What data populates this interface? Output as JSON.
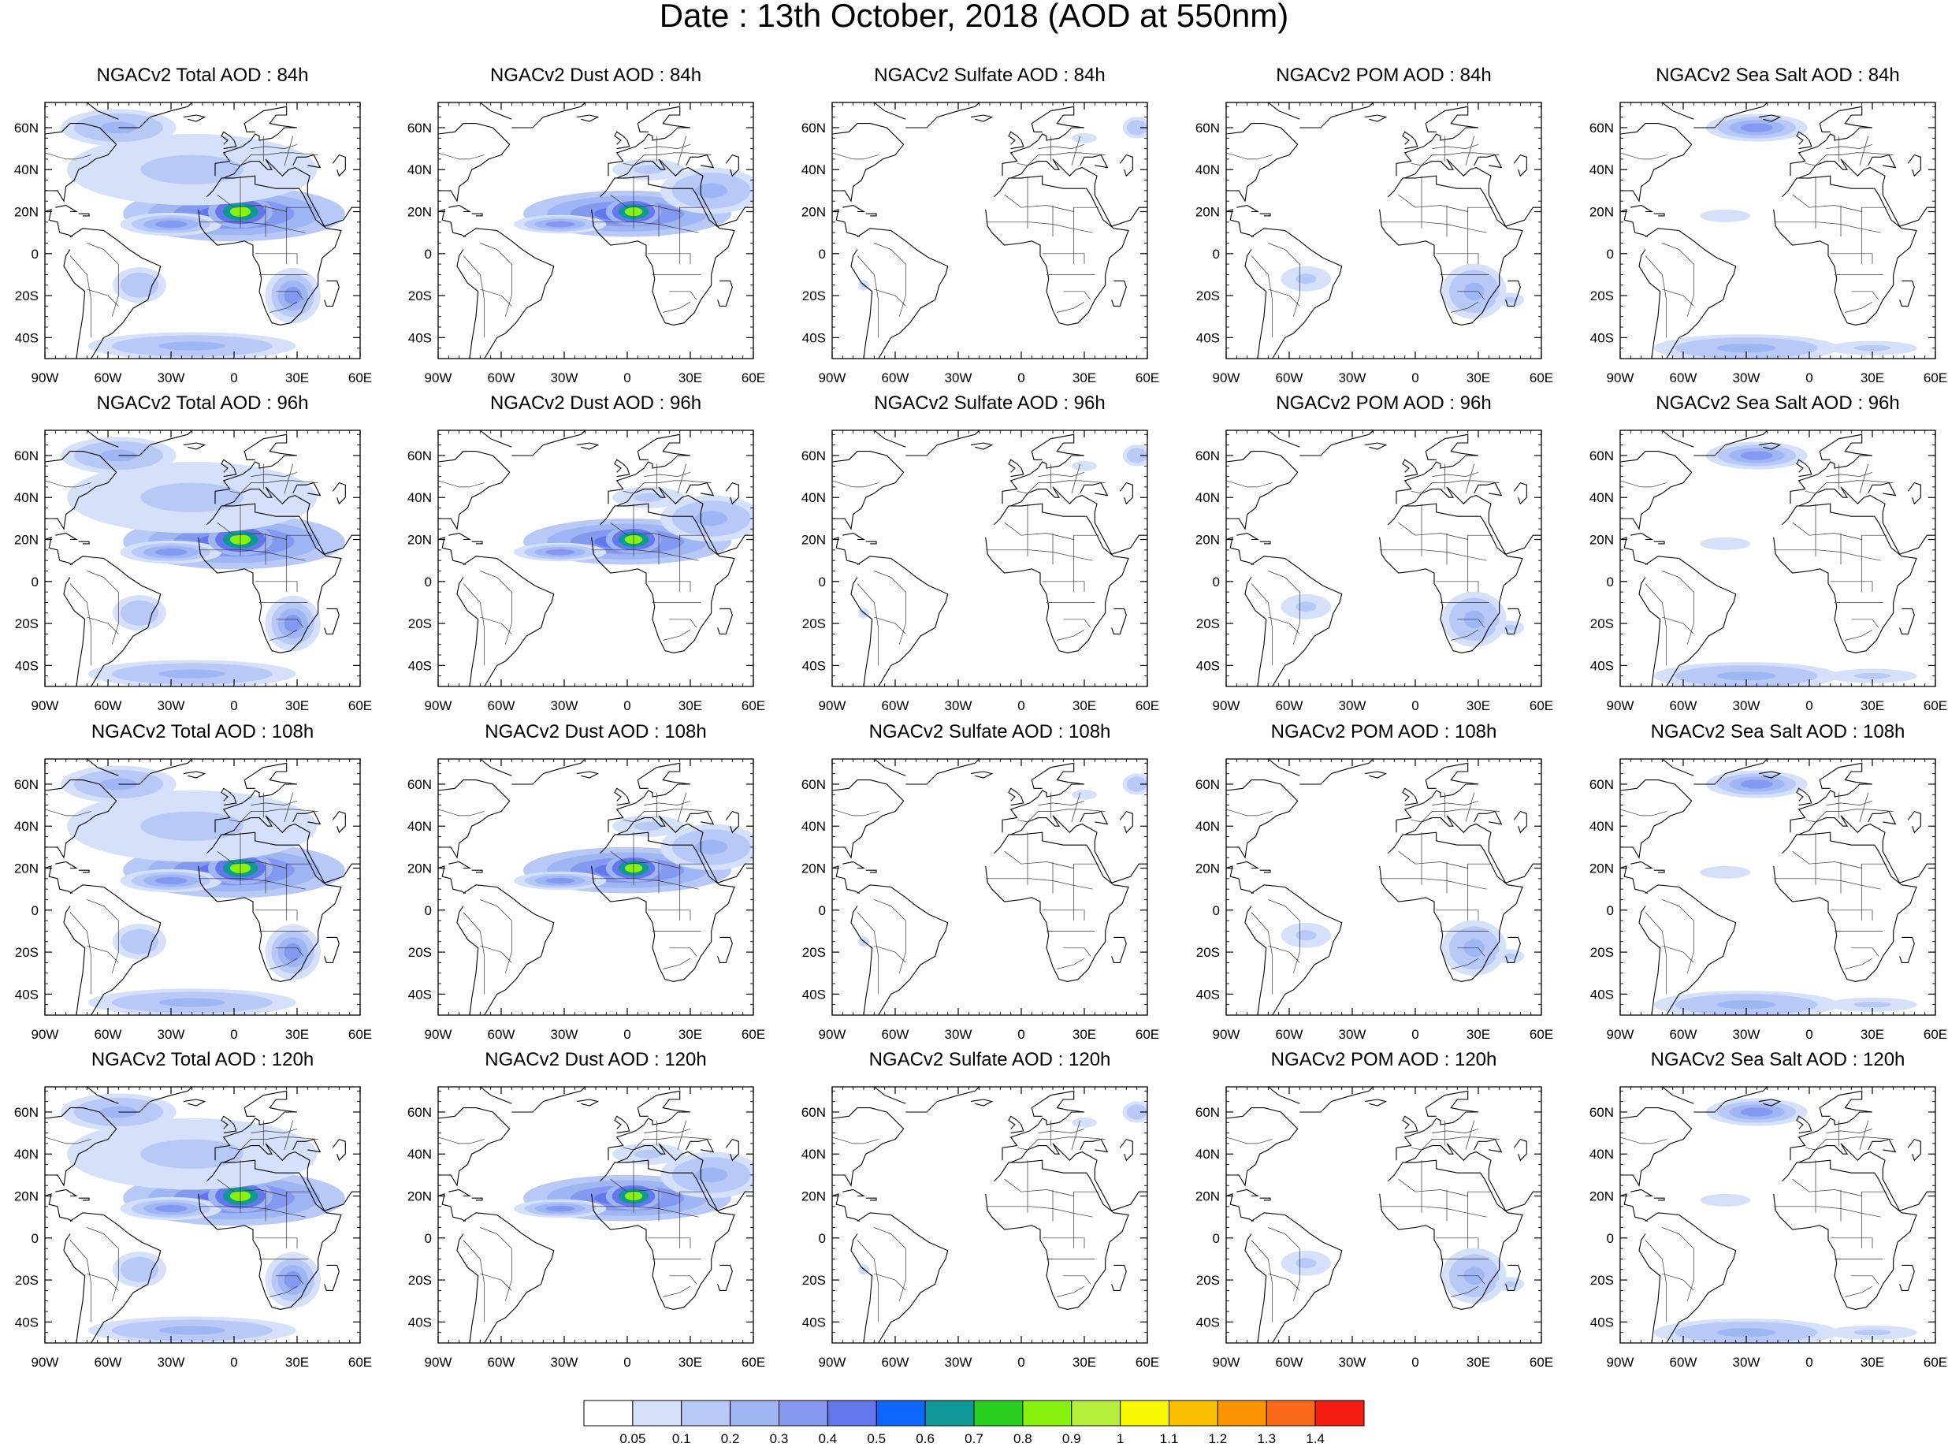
{
  "title": "Date : 13th October, 2018 (AOD at 550nm)",
  "panel_rows": [
    {
      "hour": "84h",
      "panels": [
        {
          "title": "NGACv2 Total AOD : 84h",
          "field": "total"
        },
        {
          "title": "NGACv2 Dust AOD : 84h",
          "field": "dust"
        },
        {
          "title": "NGACv2 Sulfate AOD : 84h",
          "field": "sulfate"
        },
        {
          "title": "NGACv2 POM AOD : 84h",
          "field": "pom"
        },
        {
          "title": "NGACv2 Sea Salt AOD : 84h",
          "field": "seasalt"
        }
      ]
    },
    {
      "hour": "96h",
      "panels": [
        {
          "title": "NGACv2 Total AOD : 96h",
          "field": "total"
        },
        {
          "title": "NGACv2 Dust AOD : 96h",
          "field": "dust"
        },
        {
          "title": "NGACv2 Sulfate AOD : 96h",
          "field": "sulfate"
        },
        {
          "title": "NGACv2 POM AOD : 96h",
          "field": "pom"
        },
        {
          "title": "NGACv2 Sea Salt AOD : 96h",
          "field": "seasalt"
        }
      ]
    },
    {
      "hour": "108h",
      "panels": [
        {
          "title": "NGACv2 Total AOD : 108h",
          "field": "total"
        },
        {
          "title": "NGACv2 Dust AOD : 108h",
          "field": "dust"
        },
        {
          "title": "NGACv2 Sulfate AOD : 108h",
          "field": "sulfate"
        },
        {
          "title": "NGACv2 POM AOD : 108h",
          "field": "pom"
        },
        {
          "title": "NGACv2 Sea Salt AOD : 108h",
          "field": "seasalt"
        }
      ]
    },
    {
      "hour": "120h",
      "panels": [
        {
          "title": "NGACv2 Total AOD : 120h",
          "field": "total"
        },
        {
          "title": "NGACv2 Dust AOD : 120h",
          "field": "dust"
        },
        {
          "title": "NGACv2 Sulfate AOD : 120h",
          "field": "sulfate"
        },
        {
          "title": "NGACv2 POM AOD : 120h",
          "field": "pom"
        },
        {
          "title": "NGACv2 Sea Salt  AOD : 120h",
          "field": "seasalt"
        }
      ]
    }
  ],
  "map_extent": {
    "lon": [
      -90,
      60
    ],
    "lat": [
      -50,
      72
    ]
  },
  "lon_ticks": [
    {
      "value": -90,
      "label": "90W"
    },
    {
      "value": -60,
      "label": "60W"
    },
    {
      "value": -30,
      "label": "30W"
    },
    {
      "value": 0,
      "label": "0"
    },
    {
      "value": 30,
      "label": "30E"
    },
    {
      "value": 60,
      "label": "60E"
    }
  ],
  "lat_ticks": [
    {
      "value": 60,
      "label": "60N"
    },
    {
      "value": 40,
      "label": "40N"
    },
    {
      "value": 20,
      "label": "20N"
    },
    {
      "value": 0,
      "label": "0"
    },
    {
      "value": -20,
      "label": "20S"
    },
    {
      "value": -40,
      "label": "40S"
    }
  ],
  "colorbar": {
    "levels": [
      "0.05",
      "0.1",
      "0.2",
      "0.3",
      "0.4",
      "0.5",
      "0.6",
      "0.7",
      "0.8",
      "0.9",
      "1",
      "1.1",
      "1.2",
      "1.3",
      "1.4"
    ],
    "colors": [
      "#ffffff",
      "#d5e0fb",
      "#b8c9f7",
      "#9fb5f4",
      "#8599f0",
      "#6577ec",
      "#0f66ff",
      "#109797",
      "#2ad01d",
      "#86f20e",
      "#b6ee3c",
      "#f8f800",
      "#fbbf00",
      "#fd9400",
      "#fb6a1a",
      "#f51d11"
    ]
  },
  "aerosol_fields": {
    "total": [
      {
        "lon": 0,
        "lat": 19,
        "rx": 48,
        "ry": 12,
        "v": 0.45
      },
      {
        "lon": -30,
        "lat": 14,
        "rx": 22,
        "ry": 5,
        "v": 0.3
      },
      {
        "lon": 3,
        "lat": 20,
        "rx": 14,
        "ry": 7,
        "v": 0.8
      },
      {
        "lon": -20,
        "lat": 40,
        "rx": 70,
        "ry": 20,
        "v": 0.12
      },
      {
        "lon": -55,
        "lat": 60,
        "rx": 25,
        "ry": 8,
        "v": 0.25
      },
      {
        "lon": 28,
        "lat": -20,
        "rx": 12,
        "ry": 12,
        "v": 0.3
      },
      {
        "lon": -20,
        "lat": -44,
        "rx": 45,
        "ry": 6,
        "v": 0.25
      },
      {
        "lon": -45,
        "lat": -15,
        "rx": 15,
        "ry": 10,
        "v": 0.15
      }
    ],
    "dust": [
      {
        "lon": 0,
        "lat": 19,
        "rx": 45,
        "ry": 10,
        "v": 0.45
      },
      {
        "lon": -32,
        "lat": 14,
        "rx": 20,
        "ry": 4,
        "v": 0.3
      },
      {
        "lon": 3,
        "lat": 20,
        "rx": 12,
        "ry": 6,
        "v": 0.8
      },
      {
        "lon": 40,
        "lat": 30,
        "rx": 22,
        "ry": 10,
        "v": 0.2
      },
      {
        "lon": 10,
        "lat": 40,
        "rx": 20,
        "ry": 6,
        "v": 0.1
      }
    ],
    "sulfate": [
      {
        "lon": 55,
        "lat": 60,
        "rx": 8,
        "ry": 6,
        "v": 0.15
      },
      {
        "lon": 30,
        "lat": 55,
        "rx": 10,
        "ry": 4,
        "v": 0.08
      },
      {
        "lon": -75,
        "lat": -15,
        "rx": 3,
        "ry": 3,
        "v": 0.1
      }
    ],
    "pom": [
      {
        "lon": 28,
        "lat": -18,
        "rx": 14,
        "ry": 12,
        "v": 0.25
      },
      {
        "lon": -52,
        "lat": -12,
        "rx": 14,
        "ry": 7,
        "v": 0.12
      },
      {
        "lon": 45,
        "lat": -22,
        "rx": 8,
        "ry": 4,
        "v": 0.1
      }
    ],
    "seasalt": [
      {
        "lon": -25,
        "lat": 60,
        "rx": 22,
        "ry": 6,
        "v": 0.3
      },
      {
        "lon": -30,
        "lat": -45,
        "rx": 40,
        "ry": 6,
        "v": 0.2
      },
      {
        "lon": 30,
        "lat": -45,
        "rx": 25,
        "ry": 4,
        "v": 0.12
      },
      {
        "lon": -40,
        "lat": 18,
        "rx": 20,
        "ry": 5,
        "v": 0.08
      }
    ]
  },
  "coastlines": {
    "north_america": [
      [
        -90,
        30
      ],
      [
        -84,
        30
      ],
      [
        -81,
        25
      ],
      [
        -80,
        32
      ],
      [
        -76,
        35
      ],
      [
        -74,
        40
      ],
      [
        -70,
        42
      ],
      [
        -66,
        45
      ],
      [
        -60,
        47
      ],
      [
        -56,
        52
      ],
      [
        -60,
        56
      ],
      [
        -64,
        60
      ],
      [
        -72,
        62
      ],
      [
        -78,
        62
      ],
      [
        -82,
        58
      ],
      [
        -90,
        57
      ]
    ],
    "greenland": [
      [
        -55,
        60
      ],
      [
        -45,
        60
      ],
      [
        -40,
        65
      ],
      [
        -30,
        68
      ],
      [
        -22,
        70
      ],
      [
        -20,
        72
      ],
      [
        -70,
        72
      ],
      [
        -65,
        68
      ],
      [
        -55,
        64
      ]
    ],
    "central_america": [
      [
        -90,
        20
      ],
      [
        -87,
        21
      ],
      [
        -88,
        16
      ],
      [
        -84,
        15
      ],
      [
        -83,
        10
      ],
      [
        -79,
        9
      ],
      [
        -77,
        8
      ]
    ],
    "south_america": [
      [
        -78,
        8
      ],
      [
        -72,
        12
      ],
      [
        -62,
        11
      ],
      [
        -55,
        6
      ],
      [
        -50,
        2
      ],
      [
        -44,
        -2
      ],
      [
        -35,
        -6
      ],
      [
        -36,
        -10
      ],
      [
        -39,
        -15
      ],
      [
        -41,
        -22
      ],
      [
        -48,
        -26
      ],
      [
        -53,
        -33
      ],
      [
        -58,
        -38
      ],
      [
        -62,
        -40
      ],
      [
        -65,
        -45
      ],
      [
        -68,
        -50
      ],
      [
        -75,
        -50
      ],
      [
        -74,
        -42
      ],
      [
        -72,
        -30
      ],
      [
        -71,
        -18
      ],
      [
        -76,
        -14
      ],
      [
        -81,
        -6
      ],
      [
        -80,
        -1
      ],
      [
        -78,
        2
      ]
    ],
    "africa": [
      [
        -17,
        21
      ],
      [
        -16,
        13
      ],
      [
        -14,
        10
      ],
      [
        -8,
        4
      ],
      [
        0,
        5
      ],
      [
        5,
        6
      ],
      [
        9,
        4
      ],
      [
        9,
        -1
      ],
      [
        12,
        -6
      ],
      [
        13,
        -12
      ],
      [
        12,
        -18
      ],
      [
        15,
        -27
      ],
      [
        18,
        -33
      ],
      [
        22,
        -34
      ],
      [
        27,
        -33
      ],
      [
        32,
        -28
      ],
      [
        35,
        -22
      ],
      [
        40,
        -15
      ],
      [
        40,
        -10
      ],
      [
        42,
        -2
      ],
      [
        48,
        3
      ],
      [
        51,
        11
      ],
      [
        44,
        12
      ],
      [
        39,
        16
      ],
      [
        33,
        28
      ],
      [
        31,
        31
      ],
      [
        20,
        31
      ],
      [
        10,
        33
      ],
      [
        10,
        37
      ],
      [
        0,
        36
      ],
      [
        -6,
        36
      ],
      [
        -10,
        30
      ],
      [
        -13,
        27
      ]
    ],
    "madagascar": [
      [
        44,
        -13
      ],
      [
        49,
        -13
      ],
      [
        50,
        -16
      ],
      [
        47,
        -25
      ],
      [
        44,
        -25
      ],
      [
        43,
        -22
      ]
    ],
    "europe": [
      [
        -9,
        37
      ],
      [
        -9,
        43
      ],
      [
        -2,
        44
      ],
      [
        -5,
        48
      ],
      [
        1,
        50
      ],
      [
        4,
        51
      ],
      [
        8,
        54
      ],
      [
        10,
        57
      ],
      [
        12,
        56
      ],
      [
        12,
        54
      ],
      [
        18,
        55
      ],
      [
        21,
        57
      ],
      [
        24,
        60
      ],
      [
        30,
        60
      ],
      [
        22,
        61
      ],
      [
        17,
        62
      ],
      [
        20,
        66
      ],
      [
        25,
        66
      ],
      [
        25,
        70
      ],
      [
        14,
        68
      ],
      [
        5,
        62
      ],
      [
        6,
        58
      ],
      [
        10,
        58
      ]
    ],
    "mediterranean": [
      [
        -5,
        36
      ],
      [
        0,
        38
      ],
      [
        3,
        42
      ],
      [
        8,
        44
      ],
      [
        12,
        44
      ],
      [
        16,
        40
      ],
      [
        18,
        40
      ],
      [
        15,
        45
      ],
      [
        20,
        40
      ],
      [
        23,
        37
      ],
      [
        26,
        40
      ],
      [
        29,
        41
      ],
      [
        36,
        37
      ],
      [
        35,
        33
      ]
    ],
    "arabia": [
      [
        35,
        33
      ],
      [
        35,
        28
      ],
      [
        43,
        13
      ],
      [
        52,
        16
      ],
      [
        56,
        22
      ],
      [
        60,
        22
      ]
    ],
    "britain": [
      [
        -5,
        50
      ],
      [
        1,
        51
      ],
      [
        0,
        54
      ],
      [
        -2,
        56
      ],
      [
        -5,
        58
      ],
      [
        -6,
        56
      ],
      [
        -3,
        54
      ],
      [
        -5,
        52
      ]
    ],
    "iceland": [
      [
        -24,
        65
      ],
      [
        -18,
        66
      ],
      [
        -14,
        65
      ],
      [
        -18,
        63
      ],
      [
        -22,
        64
      ]
    ],
    "black_sea": [
      [
        28,
        42
      ],
      [
        30,
        46
      ],
      [
        34,
        46
      ],
      [
        38,
        47
      ],
      [
        41,
        41
      ],
      [
        35,
        42
      ]
    ],
    "caspian": [
      [
        47,
        43
      ],
      [
        50,
        47
      ],
      [
        53,
        46
      ],
      [
        53,
        40
      ],
      [
        50,
        37
      ],
      [
        49,
        40
      ]
    ],
    "cuba": [
      [
        -85,
        22
      ],
      [
        -80,
        23
      ],
      [
        -75,
        20
      ],
      [
        -78,
        20
      ]
    ],
    "hispaniola": [
      [
        -74,
        19
      ],
      [
        -69,
        19
      ],
      [
        -69,
        18
      ],
      [
        -72,
        18
      ]
    ]
  },
  "borders": {
    "africa": [
      [
        [
          -8,
          28
        ],
        [
          0,
          22
        ],
        [
          12,
          23
        ],
        [
          25,
          20
        ],
        [
          25,
          22
        ],
        [
          37,
          22
        ]
      ],
      [
        [
          -17,
          15
        ],
        [
          -5,
          15
        ],
        [
          4,
          15
        ],
        [
          15,
          14
        ],
        [
          24,
          12
        ],
        [
          34,
          10
        ]
      ],
      [
        [
          10,
          0
        ],
        [
          30,
          0
        ],
        [
          30,
          -5
        ]
      ],
      [
        [
          12,
          -10
        ],
        [
          25,
          -10
        ],
        [
          35,
          -10
        ]
      ],
      [
        [
          20,
          -18
        ],
        [
          30,
          -18
        ],
        [
          33,
          -22
        ]
      ],
      [
        [
          3,
          12
        ],
        [
          3,
          37
        ]
      ],
      [
        [
          15,
          23
        ],
        [
          15,
          8
        ]
      ],
      [
        [
          25,
          -5
        ],
        [
          25,
          22
        ]
      ],
      [
        [
          17,
          -28
        ],
        [
          25,
          -26
        ],
        [
          30,
          -23
        ]
      ]
    ],
    "south_america": [
      [
        [
          -70,
          5
        ],
        [
          -62,
          2
        ],
        [
          -55,
          -5
        ],
        [
          -55,
          -20
        ],
        [
          -58,
          -30
        ]
      ],
      [
        [
          -70,
          -17
        ],
        [
          -60,
          -20
        ],
        [
          -55,
          -25
        ]
      ],
      [
        [
          -78,
          -1
        ],
        [
          -70,
          -10
        ],
        [
          -68,
          -22
        ],
        [
          -68,
          -40
        ]
      ]
    ],
    "europe": [
      [
        [
          -2,
          43
        ],
        [
          3,
          42
        ],
        [
          8,
          47
        ],
        [
          15,
          47
        ],
        [
          22,
          48
        ],
        [
          28,
          48
        ],
        [
          40,
          47
        ]
      ],
      [
        [
          8,
          50
        ],
        [
          15,
          51
        ],
        [
          24,
          50
        ],
        [
          30,
          52
        ]
      ],
      [
        [
          14,
          56
        ],
        [
          14,
          44
        ]
      ],
      [
        [
          24,
          42
        ],
        [
          28,
          56
        ]
      ]
    ],
    "north_america": [
      [
        [
          -90,
          48
        ],
        [
          -80,
          45
        ],
        [
          -75,
          45
        ],
        [
          -68,
          47
        ]
      ],
      [
        [
          -98,
          30
        ],
        [
          -85,
          30
        ]
      ]
    ]
  }
}
